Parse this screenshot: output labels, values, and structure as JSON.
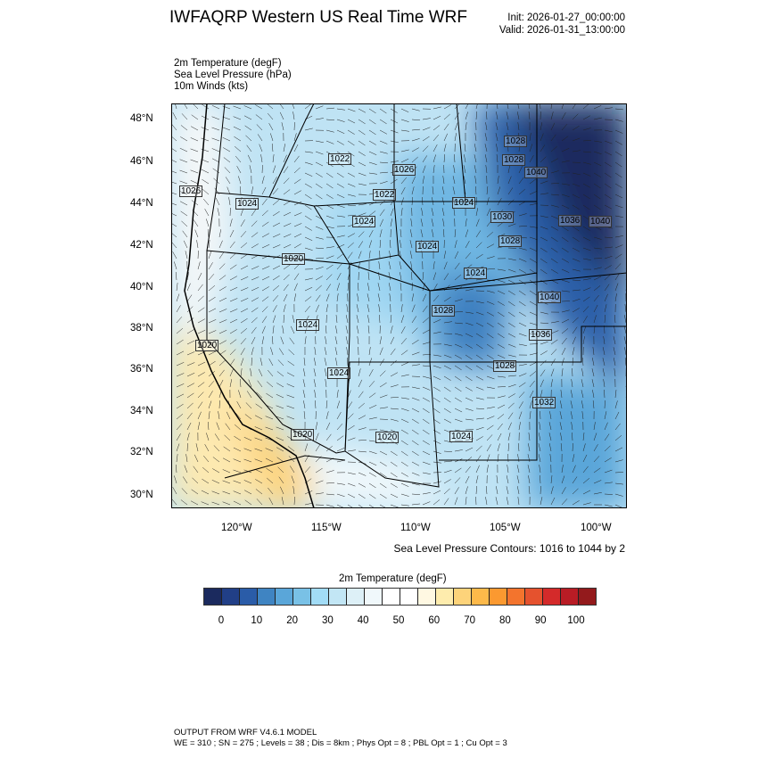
{
  "title": "IWFAQRP Western US Real Time WRF",
  "init": "Init: 2026-01-27_00:00:00",
  "valid": "Valid: 2026-01-31_13:00:00",
  "fields": [
    "2m Temperature   (degF)",
    "Sea Level Pressure   (hPa)",
    "10m Winds   (kts)"
  ],
  "map": {
    "lat_ticks": [
      "48°N",
      "46°N",
      "44°N",
      "42°N",
      "40°N",
      "38°N",
      "36°N",
      "34°N",
      "32°N",
      "30°N"
    ],
    "lon_ticks": [
      "120°W",
      "115°W",
      "110°W",
      "105°W",
      "100°W"
    ],
    "contour_labels": [
      "1026",
      "1022",
      "1024",
      "1020",
      "1022",
      "1026",
      "1024",
      "1024",
      "1024",
      "1028",
      "1024",
      "1028",
      "1028",
      "1040",
      "1036",
      "1030",
      "1040",
      "1040",
      "1036",
      "1028",
      "1028",
      "1032",
      "1024",
      "1020",
      "1020",
      "1020",
      "1024",
      "1024"
    ],
    "contour_note": "Sea Level Pressure Contours: 1016 to 1044 by 2"
  },
  "colorbar": {
    "title": "2m Temperature  (degF)",
    "colors": [
      "#1b2a5e",
      "#213f87",
      "#2a5ca8",
      "#3f84c2",
      "#5aa6d9",
      "#79c1e6",
      "#a2dcf6",
      "#c2e6f5",
      "#ddf0f7",
      "#f0f8fb",
      "#ffffff",
      "#ffffff",
      "#fff8e2",
      "#feecad",
      "#fdd37a",
      "#fdb94a",
      "#fb9930",
      "#f3742d",
      "#e5522e",
      "#d42a2a",
      "#b91c25",
      "#931a1c"
    ],
    "labels": [
      "0",
      "10",
      "20",
      "30",
      "40",
      "50",
      "60",
      "70",
      "80",
      "90",
      "100"
    ]
  },
  "footer": {
    "line1": "OUTPUT FROM WRF V4.6.1 MODEL",
    "line2": "WE = 310 ; SN = 275 ; Levels = 38 ; Dis = 8km ; Phys Opt = 8 ; PBL Opt = 1 ; Cu Opt = 3"
  }
}
